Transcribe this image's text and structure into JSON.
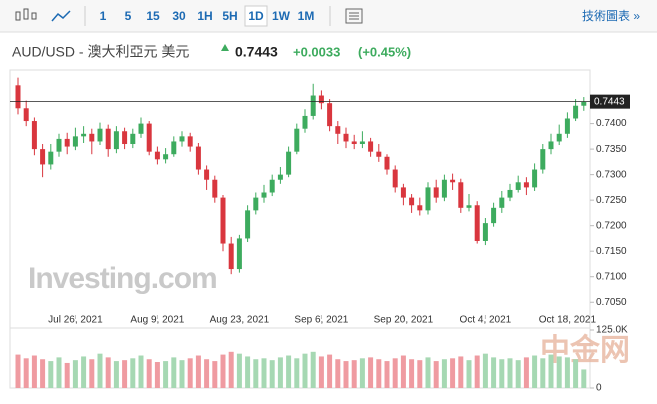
{
  "toolbar": {
    "intervals": [
      "1",
      "5",
      "15",
      "30",
      "1H",
      "5H",
      "1D",
      "1W",
      "1M"
    ],
    "selected": "1D",
    "link": "技術圖表 »"
  },
  "header": {
    "symbol": "AUD/USD - 澳大利亞元 美元",
    "change": "+0.0033",
    "change_pct": "(+0.45%)"
  },
  "watermark": {
    "logo": "Investing.com",
    "site": "中金网"
  },
  "chart_data": {
    "type": "candlestick",
    "last_price": 0.7443,
    "categories": [
      null,
      null,
      null,
      null,
      null,
      null,
      null,
      "Jul 26, 2021",
      null,
      null,
      null,
      null,
      null,
      null,
      null,
      null,
      null,
      "Aug 9, 2021",
      null,
      null,
      null,
      null,
      null,
      null,
      null,
      null,
      null,
      "Aug 23, 2021",
      null,
      null,
      null,
      null,
      null,
      null,
      null,
      null,
      null,
      "Sep 6, 2021",
      null,
      null,
      null,
      null,
      null,
      null,
      null,
      null,
      null,
      "Sep 20, 2021",
      null,
      null,
      null,
      null,
      null,
      null,
      null,
      null,
      null,
      "Oct 4, 2021",
      null,
      null,
      null,
      null,
      null,
      null,
      null,
      null,
      null,
      "Oct 18, 2021",
      null,
      null
    ],
    "open": [
      0.7475,
      0.743,
      0.7405,
      0.735,
      0.732,
      0.7345,
      0.737,
      0.7355,
      0.7375,
      0.738,
      0.7365,
      0.739,
      0.735,
      0.7385,
      0.736,
      0.738,
      0.74,
      0.7345,
      0.733,
      0.734,
      0.7365,
      0.7375,
      0.7355,
      0.731,
      0.729,
      0.7255,
      0.7165,
      0.7115,
      0.7175,
      0.723,
      0.7255,
      0.7265,
      0.729,
      0.73,
      0.7345,
      0.739,
      0.7415,
      0.7455,
      0.744,
      0.7395,
      0.738,
      0.7365,
      0.736,
      0.7365,
      0.7345,
      0.7335,
      0.731,
      0.7275,
      0.7255,
      0.724,
      0.723,
      0.7275,
      0.7255,
      0.729,
      0.7285,
      0.7235,
      0.724,
      0.717,
      0.7205,
      0.7235,
      0.7255,
      0.727,
      0.7285,
      0.7275,
      0.731,
      0.735,
      0.7365,
      0.738,
      0.741,
      0.7435
    ],
    "high": [
      0.749,
      0.7445,
      0.7412,
      0.736,
      0.736,
      0.738,
      0.7382,
      0.7392,
      0.7395,
      0.739,
      0.7402,
      0.7398,
      0.7395,
      0.7392,
      0.739,
      0.7412,
      0.7405,
      0.7355,
      0.7352,
      0.7375,
      0.7385,
      0.7382,
      0.7362,
      0.7318,
      0.7298,
      0.726,
      0.7178,
      0.7182,
      0.724,
      0.7265,
      0.728,
      0.73,
      0.7315,
      0.7355,
      0.74,
      0.7428,
      0.7478,
      0.7465,
      0.7448,
      0.7405,
      0.7392,
      0.7378,
      0.7385,
      0.7372,
      0.736,
      0.734,
      0.7318,
      0.7282,
      0.7262,
      0.7255,
      0.7285,
      0.729,
      0.73,
      0.7302,
      0.7292,
      0.7262,
      0.7248,
      0.7215,
      0.7245,
      0.7268,
      0.7282,
      0.7298,
      0.7295,
      0.7322,
      0.736,
      0.738,
      0.7398,
      0.7422,
      0.7448,
      0.7452
    ],
    "low": [
      0.7418,
      0.7395,
      0.7338,
      0.7295,
      0.731,
      0.7335,
      0.734,
      0.7348,
      0.7362,
      0.734,
      0.7358,
      0.7335,
      0.7342,
      0.735,
      0.7352,
      0.7372,
      0.7338,
      0.732,
      0.7322,
      0.7335,
      0.7355,
      0.7345,
      0.73,
      0.727,
      0.7245,
      0.715,
      0.7105,
      0.7108,
      0.7168,
      0.7222,
      0.7245,
      0.7258,
      0.7282,
      0.7295,
      0.734,
      0.7382,
      0.7408,
      0.7428,
      0.7385,
      0.736,
      0.7352,
      0.735,
      0.7352,
      0.7335,
      0.7325,
      0.73,
      0.7265,
      0.724,
      0.7225,
      0.722,
      0.7222,
      0.7245,
      0.7248,
      0.727,
      0.7225,
      0.7228,
      0.7165,
      0.7162,
      0.7198,
      0.7225,
      0.7248,
      0.7265,
      0.726,
      0.7268,
      0.7302,
      0.734,
      0.7358,
      0.7372,
      0.7405,
      0.7425
    ],
    "close": [
      0.743,
      0.7405,
      0.735,
      0.732,
      0.7345,
      0.737,
      0.7355,
      0.7375,
      0.738,
      0.7365,
      0.739,
      0.735,
      0.7385,
      0.736,
      0.738,
      0.74,
      0.7345,
      0.733,
      0.734,
      0.7365,
      0.7375,
      0.7355,
      0.731,
      0.729,
      0.7255,
      0.7165,
      0.7115,
      0.7175,
      0.723,
      0.7255,
      0.7265,
      0.729,
      0.73,
      0.7345,
      0.739,
      0.7415,
      0.7455,
      0.744,
      0.7395,
      0.738,
      0.7365,
      0.736,
      0.7365,
      0.7345,
      0.7335,
      0.731,
      0.7275,
      0.7255,
      0.724,
      0.723,
      0.7275,
      0.7255,
      0.729,
      0.7285,
      0.7235,
      0.724,
      0.717,
      0.7205,
      0.7235,
      0.7255,
      0.727,
      0.7285,
      0.7275,
      0.731,
      0.735,
      0.7365,
      0.738,
      0.741,
      0.7435,
      0.7443
    ],
    "volume": [
      72000,
      64000,
      70000,
      62000,
      58000,
      66000,
      54000,
      60000,
      68000,
      62000,
      74000,
      66000,
      58000,
      60000,
      64000,
      70000,
      62000,
      56000,
      58000,
      66000,
      60000,
      64000,
      70000,
      62000,
      58000,
      72000,
      78000,
      74000,
      68000,
      62000,
      64000,
      60000,
      66000,
      70000,
      64000,
      74000,
      78000,
      68000,
      72000,
      62000,
      58000,
      60000,
      64000,
      66000,
      62000,
      58000,
      64000,
      70000,
      62000,
      60000,
      66000,
      58000,
      62000,
      64000,
      68000,
      60000,
      70000,
      74000,
      66000,
      62000,
      64000,
      60000,
      66000,
      70000,
      64000,
      72000,
      68000,
      66000,
      62000,
      40000
    ],
    "ylim": [
      0.7025,
      0.7505
    ],
    "yticks": [
      {
        "value": 0.705,
        "label": "0.7050"
      },
      {
        "value": 0.71,
        "label": "0.7100"
      },
      {
        "value": 0.715,
        "label": "0.7150"
      },
      {
        "value": 0.72,
        "label": "0.7200"
      },
      {
        "value": 0.725,
        "label": "0.7250"
      },
      {
        "value": 0.73,
        "label": "0.7300"
      },
      {
        "value": 0.735,
        "label": "0.7350"
      },
      {
        "value": 0.74,
        "label": "0.7400"
      }
    ],
    "y2lim": [
      0,
      125000
    ],
    "y2ticks": [
      0,
      {
        "value": 125000,
        "label": "125.0K"
      }
    ],
    "up_color": "#3dab5e",
    "down_color": "#d9363e",
    "volume_up_color": "#a6d8b3",
    "volume_down_color": "#ef9ba1"
  }
}
